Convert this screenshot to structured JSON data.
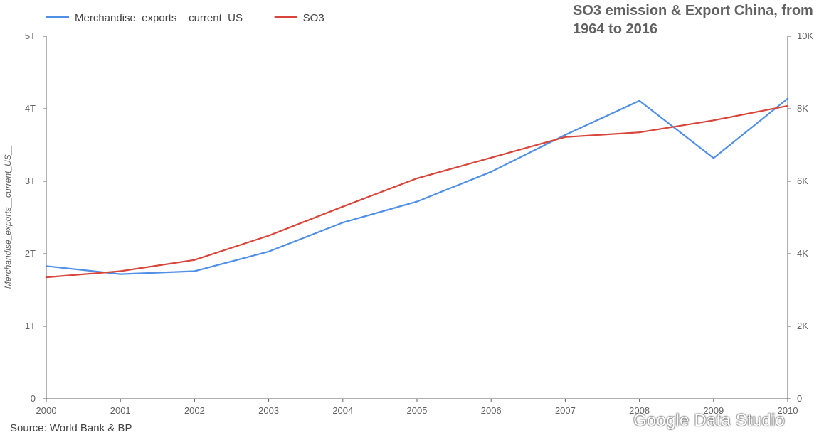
{
  "chart_data": {
    "type": "line",
    "title": "SO3 emission & Export China, from 1964 to 2016",
    "source": "Source: World Bank & BP",
    "watermark": "Google Data Studio",
    "x": [
      "2000",
      "2001",
      "2002",
      "2003",
      "2004",
      "2005",
      "2006",
      "2007",
      "2008",
      "2009",
      "2010"
    ],
    "ylabel_left": "Merchandise_exports__current_US__",
    "ylim_left": [
      0,
      5000000000000
    ],
    "yticks_left": [
      "0",
      "1T",
      "2T",
      "3T",
      "4T",
      "5T"
    ],
    "ylim_right": [
      0,
      10000
    ],
    "yticks_right": [
      "0",
      "2K",
      "4K",
      "6K",
      "8K",
      "10K"
    ],
    "legend_position": "top-left",
    "grid": false,
    "series": [
      {
        "name": "Merchandise_exports__current_US__",
        "legend_label": "Merchandise_exports__current_US__",
        "color": "#4f8fe6",
        "axis": "left",
        "values": [
          1830000000000,
          1720000000000,
          1760000000000,
          2030000000000,
          2430000000000,
          2720000000000,
          3130000000000,
          3640000000000,
          4110000000000,
          3320000000000,
          4140000000000
        ]
      },
      {
        "name": "SO3",
        "legend_label": "SO3",
        "color": "#d8453b",
        "axis": "right",
        "values": [
          3350,
          3520,
          3830,
          4500,
          5300,
          6080,
          6650,
          7220,
          7350,
          7680,
          8080
        ]
      }
    ]
  }
}
